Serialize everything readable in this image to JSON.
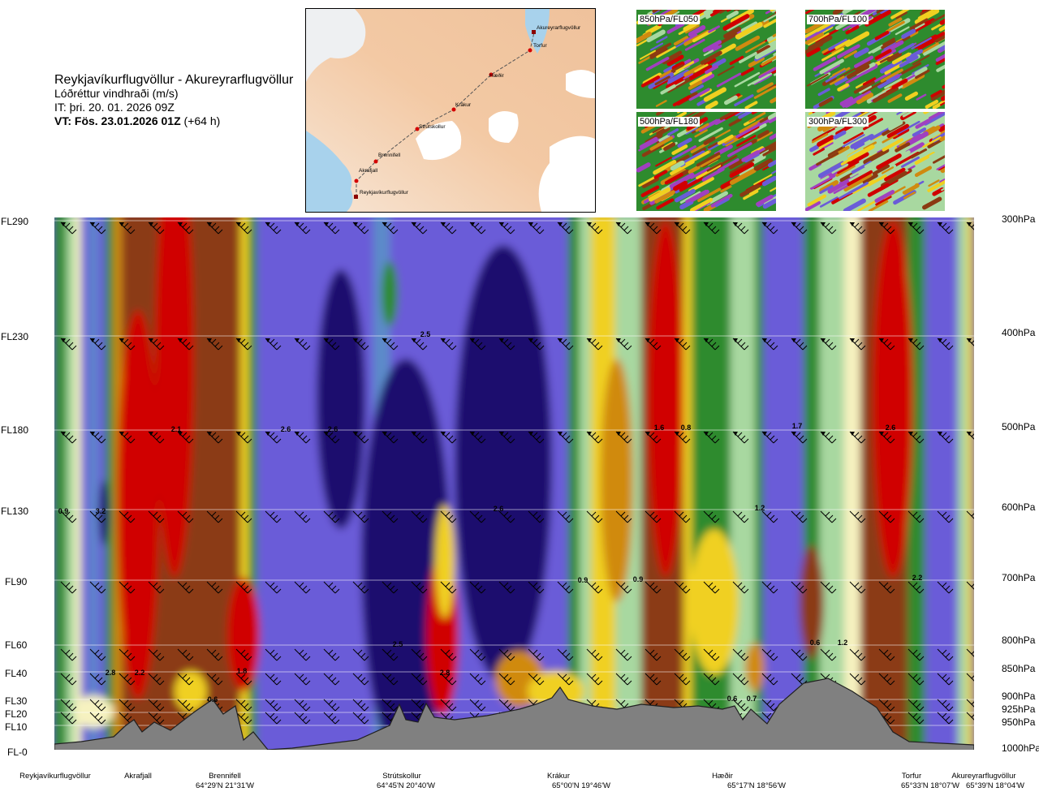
{
  "header": {
    "route": "Reykjavíkurflugvöllur - Akureyrarflugvöllur",
    "parameter": "Lóðréttur vindhraði (m/s)",
    "issue_time": "IT: þri. 20. 01. 2026 09Z",
    "valid_time": "VT: Fös. 23.01.2026 01Z",
    "lead": "(+64 h)"
  },
  "map": {
    "waypoints": [
      "Akureyrarflugvöllur",
      "Torfur",
      "Hæðir",
      "Krákur",
      "Strútskollur",
      "Brennifell",
      "Akrafjall",
      "Reykjavíkurflugvöllur"
    ],
    "route_color": "#d40000"
  },
  "thumbnails": [
    {
      "label": "850hPa/FL050"
    },
    {
      "label": "700hPa/FL100"
    },
    {
      "label": "500hPa/FL180"
    },
    {
      "label": "300hPa/FL300"
    }
  ],
  "chart_data": {
    "type": "heatmap",
    "title": "Reykjavíkurflugvöllur - Akureyrarflugvöllur",
    "quantity": "Lóðréttur vindhraði (m/s)",
    "y_levels": [
      {
        "fl": "FL290",
        "hpa": "300hPa"
      },
      {
        "fl": "FL230",
        "hpa": "400hPa"
      },
      {
        "fl": "FL180",
        "hpa": "500hPa"
      },
      {
        "fl": "FL130",
        "hpa": "600hPa"
      },
      {
        "fl": "FL90",
        "hpa": "700hPa"
      },
      {
        "fl": "FL60",
        "hpa": "800hPa"
      },
      {
        "fl": "FL40",
        "hpa": "850hPa"
      },
      {
        "fl": "FL30",
        "hpa": "900hPa"
      },
      {
        "fl": "FL20",
        "hpa": "925hPa"
      },
      {
        "fl": "FL10",
        "hpa": "950hPa"
      },
      {
        "fl": "FL-0",
        "hpa": "1000hPa"
      }
    ],
    "waypoints": [
      {
        "name": "Reykjavíkurflugvöllur",
        "coord": ""
      },
      {
        "name": "Akrafjall",
        "coord": ""
      },
      {
        "name": "Brennifell",
        "coord": "64°29'N 21°31'W"
      },
      {
        "name": "Strútskollur",
        "coord": "64°45'N 20°40'W"
      },
      {
        "name": "Krákur",
        "coord": "65°00'N 19°46'W"
      },
      {
        "name": "Hæðir",
        "coord": "65°17'N 18°56'W"
      },
      {
        "name": "Torfur",
        "coord": "65°33'N 18°07'W"
      },
      {
        "name": "Akureyrarflugvöllur",
        "coord": "65°39'N 18°04'W"
      }
    ],
    "value_labels": [
      "0.9",
      "3.2",
      "2.8",
      "2.2",
      "2.1",
      "0.6",
      "1.8",
      "2.6",
      "2.6",
      "2.5",
      "2.6",
      "2.5",
      "2.8",
      "0.9",
      "0.9",
      "1.6",
      "0.8",
      "1.2",
      "1.7",
      "0.6",
      "0.7",
      "0.6",
      "1.2",
      "2.6",
      "2.2"
    ],
    "colors": {
      "strong_down": "#1a0a6e",
      "down": "#6a5cd8",
      "weak_down": "#5b8bc9",
      "neutral_green": "#2e8b2e",
      "light_green": "#a8d8a0",
      "pale": "#f6f2c0",
      "yellow": "#f0d020",
      "orange": "#d08a10",
      "brown": "#8b3a12",
      "red": "#d00000",
      "terrain": "#808080"
    }
  }
}
